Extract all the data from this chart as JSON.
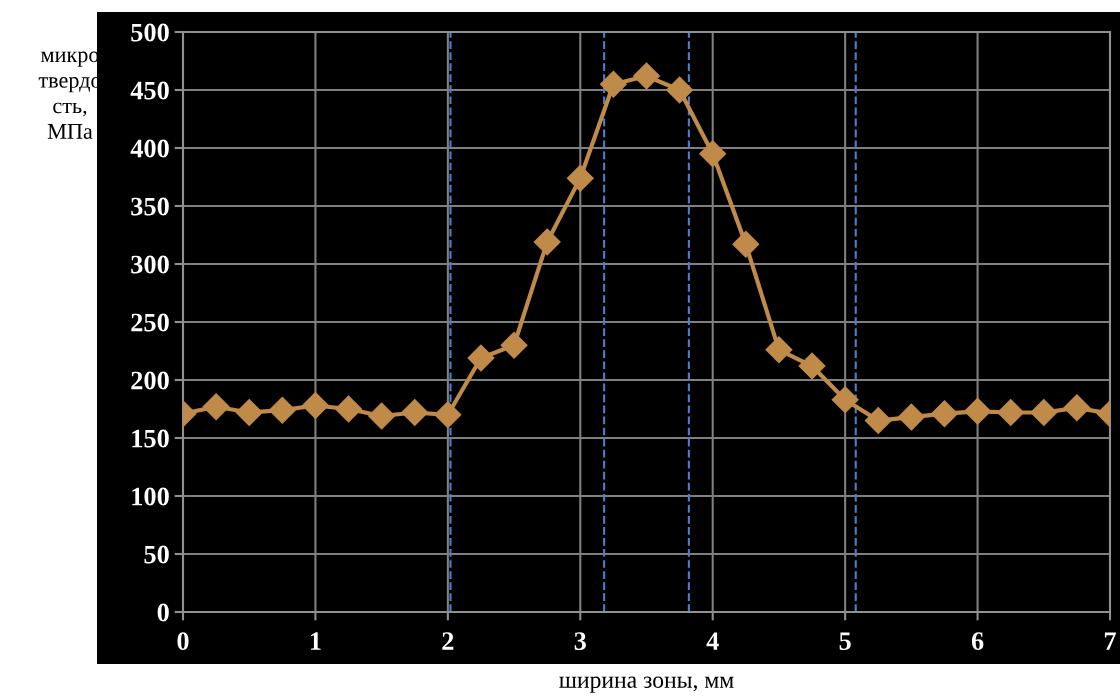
{
  "chart_data": {
    "type": "line",
    "xlabel": "ширина зоны, мм",
    "ylabel": "микро\nтвердо\nсть,\nМПа",
    "x": [
      0,
      0.25,
      0.5,
      0.75,
      1,
      1.25,
      1.5,
      1.75,
      2,
      2.25,
      2.5,
      2.75,
      3,
      3.25,
      3.5,
      3.75,
      4,
      4.25,
      4.5,
      4.75,
      5,
      5.25,
      5.5,
      5.75,
      6,
      6.25,
      6.5,
      6.75,
      7
    ],
    "series": [
      {
        "color": "#c08a48",
        "values": [
          171,
          177,
          172,
          174,
          178,
          175,
          169,
          172,
          170,
          219,
          230,
          319,
          374,
          455,
          462,
          450,
          395,
          317,
          226,
          212,
          183,
          165,
          168,
          171,
          173,
          172,
          172,
          176,
          171
        ]
      }
    ],
    "xlim": [
      0,
      7
    ],
    "xticks": [
      0,
      1,
      2,
      3,
      4,
      5,
      6,
      7
    ],
    "ylim": [
      0,
      500
    ],
    "yticks": [
      0,
      50,
      100,
      150,
      200,
      250,
      300,
      350,
      400,
      450,
      500
    ],
    "ref_lines": [
      {
        "axis": "x",
        "value": 2.02,
        "color": "#4a7fd0",
        "line_style": "dashed"
      },
      {
        "axis": "x",
        "value": 3.18,
        "color": "#4a7fd0",
        "line_style": "dashed"
      },
      {
        "axis": "x",
        "value": 3.82,
        "color": "#4a7fd0",
        "line_style": "dashed"
      },
      {
        "axis": "x",
        "value": 5.08,
        "color": "#4a7fd0",
        "line_style": "dashed"
      }
    ],
    "grid": true,
    "marker": "diamond",
    "line_style": "solid"
  }
}
